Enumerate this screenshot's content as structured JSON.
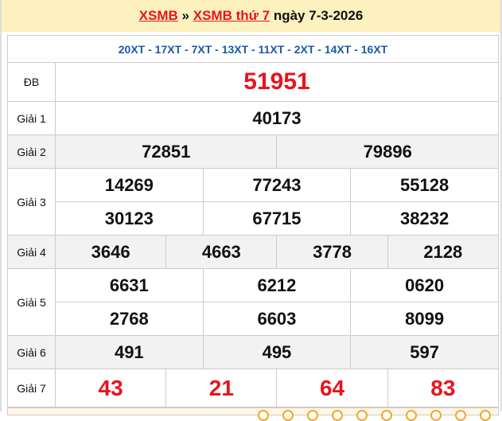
{
  "header": {
    "link1": "XSMB",
    "sep": " » ",
    "link2": "XSMB thứ 7",
    "date": " ngày 7-3-2026"
  },
  "codes": "20XT - 17XT - 7XT - 13XT - 11XT - 2XT - 14XT - 16XT",
  "prizes": {
    "db": {
      "label": "ĐB",
      "values": [
        "51951"
      ]
    },
    "g1": {
      "label": "Giải 1",
      "values": [
        "40173"
      ]
    },
    "g2": {
      "label": "Giải 2",
      "values": [
        "72851",
        "79896"
      ]
    },
    "g3": {
      "label": "Giải 3",
      "values": [
        "14269",
        "77243",
        "55128",
        "30123",
        "67715",
        "38232"
      ]
    },
    "g4": {
      "label": "Giải 4",
      "values": [
        "3646",
        "4663",
        "3778",
        "2128"
      ]
    },
    "g5": {
      "label": "Giải 5",
      "values": [
        "6631",
        "6212",
        "0620",
        "2768",
        "6603",
        "8099"
      ]
    },
    "g6": {
      "label": "Giải 6",
      "values": [
        "491",
        "495",
        "597"
      ]
    },
    "g7": {
      "label": "Giải 7",
      "values": [
        "43",
        "21",
        "64",
        "83"
      ]
    }
  },
  "colors": {
    "accent": "#e8141c",
    "code": "#1a5ba8",
    "header_bg": "#fdf1c0"
  }
}
